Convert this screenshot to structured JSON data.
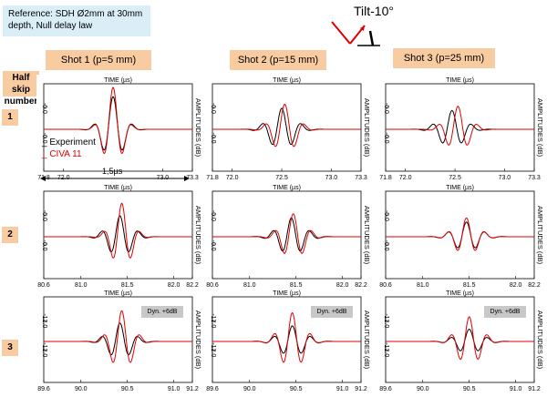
{
  "reference_text": [
    "Reference: SDH Ø2mm at 30mm",
    "depth, Null delay law"
  ],
  "tilt_label": "Tilt-10°",
  "shots": [
    "Shot 1 (p=5 mm)",
    "Shot 2 (p=15 mm)",
    "Shot 3 (p=25 mm)"
  ],
  "row_header": [
    "Half skip",
    "number"
  ],
  "rows": [
    "1",
    "2",
    "3"
  ],
  "x_title": "TIME (µs)",
  "y_title": "AMPLITUDES (dB)",
  "legend": {
    "experiment": "_ Experiment",
    "civa": "_ CIVA 11"
  },
  "annotation_width": "1,5µs",
  "dyn_label": "Dyn. +6dB",
  "colors": {
    "experiment": "#000000",
    "civa": "#e00000",
    "header_fill": "#f8cba0",
    "reference_fill": "#d9eef7",
    "dyn_fill": "#c8c8c8"
  },
  "chart_data": [
    {
      "type": "line",
      "row": 1,
      "shot": 1,
      "x_ticks": [
        "71.8",
        "72.0",
        "73.0",
        "73.3"
      ],
      "x_tick_values": [
        71.8,
        72.0,
        73.0,
        73.3
      ],
      "xlim": [
        71.8,
        73.3
      ],
      "y_ticks": [
        "-6.0",
        "-6.0"
      ],
      "series": [
        {
          "name": "Experiment",
          "center": 72.5,
          "amplitude": 0.78,
          "width": 0.1,
          "freq": 5.0
        },
        {
          "name": "CIVA 11",
          "center": 72.5,
          "amplitude": 1.0,
          "width": 0.09,
          "freq": 5.0
        }
      ]
    },
    {
      "type": "line",
      "row": 1,
      "shot": 2,
      "x_ticks": [
        "71.8",
        "72.0",
        "72.5",
        "73.0",
        "73.3"
      ],
      "x_tick_values": [
        71.8,
        72.0,
        72.5,
        73.0,
        73.3
      ],
      "xlim": [
        71.8,
        73.3
      ],
      "y_ticks": [
        "-6.0",
        "-6.0"
      ],
      "series": [
        {
          "name": "Experiment",
          "center": 72.5,
          "amplitude": 0.5,
          "width": 0.12,
          "freq": 5.0
        },
        {
          "name": "CIVA 11",
          "center": 72.53,
          "amplitude": 0.6,
          "width": 0.11,
          "freq": 5.0
        }
      ]
    },
    {
      "type": "line",
      "row": 1,
      "shot": 3,
      "x_ticks": [
        "71.8",
        "72.0",
        "72.5",
        "73.0",
        "73.3"
      ],
      "x_tick_values": [
        71.8,
        72.0,
        72.5,
        73.0,
        73.3
      ],
      "xlim": [
        71.8,
        73.3
      ],
      "y_ticks": [
        "-6.0",
        "-6.0"
      ],
      "series": [
        {
          "name": "Experiment",
          "center": 72.47,
          "amplitude": 0.45,
          "width": 0.12,
          "freq": 5.0
        },
        {
          "name": "CIVA 11",
          "center": 72.53,
          "amplitude": 0.55,
          "width": 0.11,
          "freq": 5.0
        }
      ]
    },
    {
      "type": "line",
      "row": 2,
      "shot": 1,
      "x_ticks": [
        "80.6",
        "81.0",
        "81.5",
        "82.0",
        "82.2"
      ],
      "x_tick_values": [
        80.6,
        81.0,
        81.5,
        82.0,
        82.2
      ],
      "xlim": [
        80.6,
        82.2
      ],
      "y_ticks": [
        "-6.0",
        "-6.0"
      ],
      "series": [
        {
          "name": "Experiment",
          "center": 81.42,
          "amplitude": 0.5,
          "width": 0.12,
          "freq": 5.0
        },
        {
          "name": "CIVA 11",
          "center": 81.44,
          "amplitude": 0.8,
          "width": 0.1,
          "freq": 5.0
        }
      ]
    },
    {
      "type": "line",
      "row": 2,
      "shot": 2,
      "x_ticks": [
        "80.6",
        "81.0",
        "81.5",
        "82.0",
        "82.2"
      ],
      "x_tick_values": [
        80.6,
        81.0,
        81.5,
        82.0,
        82.2
      ],
      "xlim": [
        80.6,
        82.2
      ],
      "y_ticks": [
        "-6.0",
        "-6.0"
      ],
      "series": [
        {
          "name": "Experiment",
          "center": 81.45,
          "amplitude": 0.45,
          "width": 0.13,
          "freq": 5.0
        },
        {
          "name": "CIVA 11",
          "center": 81.47,
          "amplitude": 0.55,
          "width": 0.12,
          "freq": 5.0
        }
      ]
    },
    {
      "type": "line",
      "row": 2,
      "shot": 3,
      "x_ticks": [
        "80.6",
        "81.0",
        "81.5",
        "82.0",
        "82.2"
      ],
      "x_tick_values": [
        80.6,
        81.0,
        81.5,
        82.0,
        82.2
      ],
      "xlim": [
        80.6,
        82.2
      ],
      "y_ticks": [
        "-6.0",
        "-6.0"
      ],
      "series": [
        {
          "name": "Experiment",
          "center": 81.47,
          "amplitude": 0.35,
          "width": 0.13,
          "freq": 5.0
        },
        {
          "name": "CIVA 11",
          "center": 81.47,
          "amplitude": 0.45,
          "width": 0.12,
          "freq": 5.0
        }
      ]
    },
    {
      "type": "line",
      "row": 3,
      "shot": 1,
      "x_ticks": [
        "89.6",
        "90.0",
        "90.5",
        "91.0",
        "91.2"
      ],
      "x_tick_values": [
        89.6,
        90.0,
        90.5,
        91.0,
        91.2
      ],
      "xlim": [
        89.6,
        91.2
      ],
      "y_ticks": [
        "-12.0",
        "-12.0"
      ],
      "series": [
        {
          "name": "Experiment",
          "center": 90.42,
          "amplitude": 0.45,
          "width": 0.12,
          "freq": 5.0
        },
        {
          "name": "CIVA 11",
          "center": 90.44,
          "amplitude": 0.75,
          "width": 0.11,
          "freq": 5.0
        }
      ]
    },
    {
      "type": "line",
      "row": 3,
      "shot": 2,
      "x_ticks": [
        "89.6",
        "90.0",
        "90.5",
        "91.0",
        "91.2"
      ],
      "x_tick_values": [
        89.6,
        90.0,
        90.5,
        91.0,
        91.2
      ],
      "xlim": [
        89.6,
        91.2
      ],
      "y_ticks": [
        "-12.0",
        "-12.0"
      ],
      "series": [
        {
          "name": "Experiment",
          "center": 90.46,
          "amplitude": 0.38,
          "width": 0.13,
          "freq": 5.0
        },
        {
          "name": "CIVA 11",
          "center": 90.46,
          "amplitude": 0.7,
          "width": 0.12,
          "freq": 5.0
        }
      ]
    },
    {
      "type": "line",
      "row": 3,
      "shot": 3,
      "x_ticks": [
        "89.6",
        "90.0",
        "90.5",
        "91.0",
        "91.2"
      ],
      "x_tick_values": [
        89.6,
        90.0,
        90.5,
        91.0,
        91.2
      ],
      "xlim": [
        89.6,
        91.2
      ],
      "y_ticks": [
        "-12.0",
        "-12.0"
      ],
      "series": [
        {
          "name": "Experiment",
          "center": 90.5,
          "amplitude": 0.3,
          "width": 0.13,
          "freq": 5.0
        },
        {
          "name": "CIVA 11",
          "center": 90.5,
          "amplitude": 0.6,
          "width": 0.12,
          "freq": 5.0
        }
      ]
    }
  ]
}
